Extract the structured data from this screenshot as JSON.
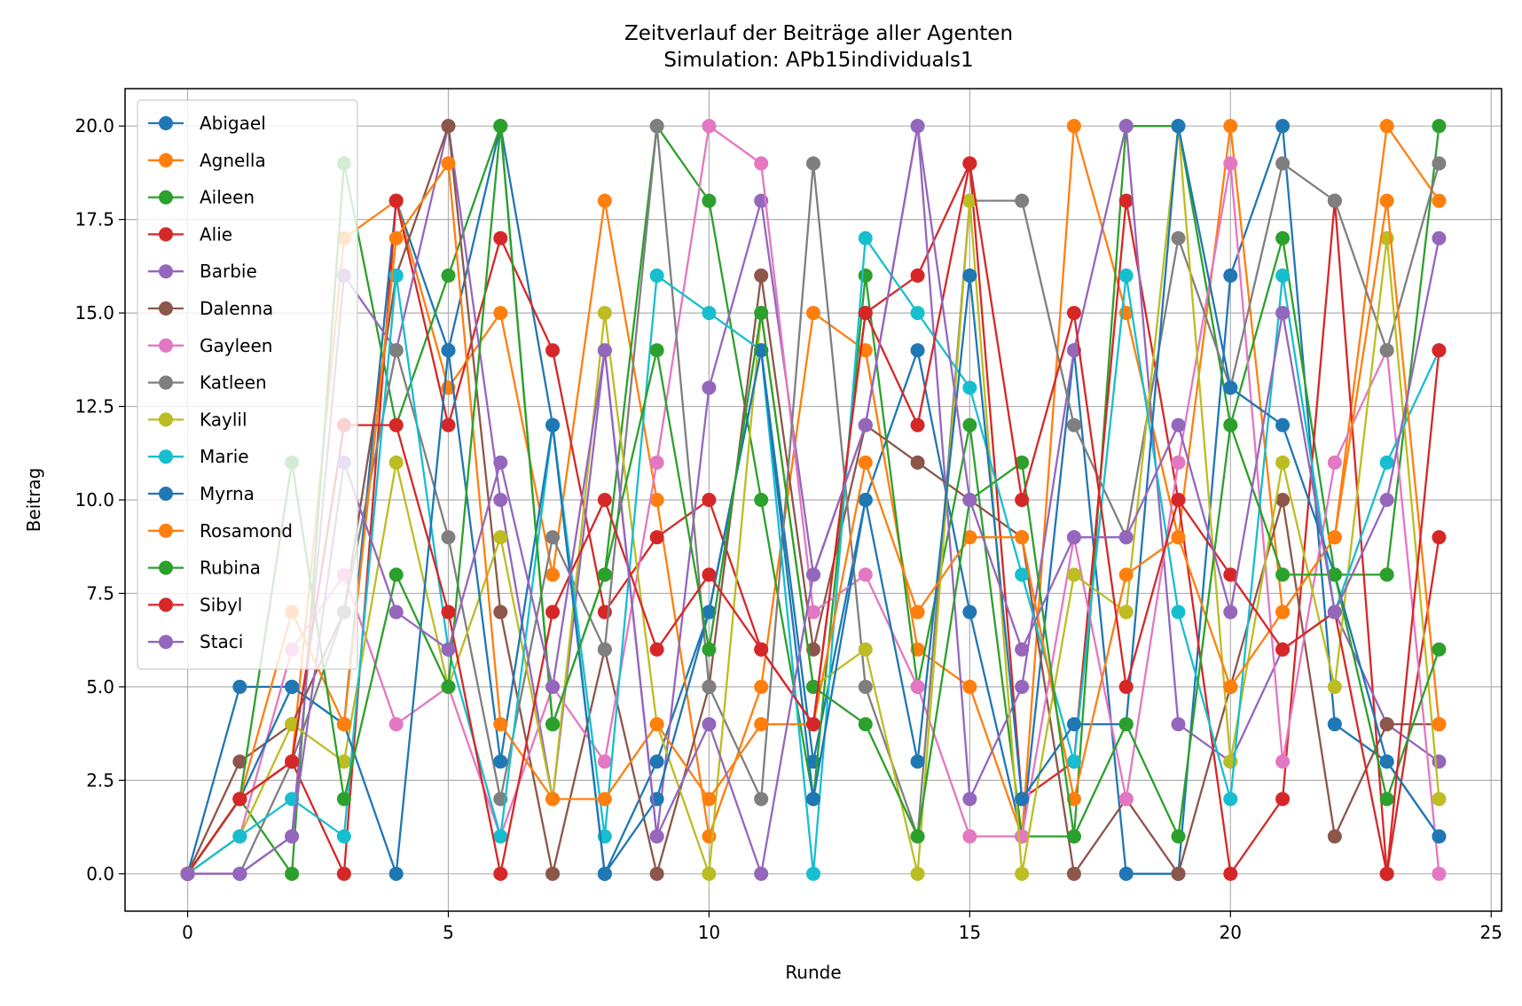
{
  "chart_data": {
    "type": "line",
    "title": "Zeitverlauf der Beiträge aller Agenten",
    "subtitle": "Simulation: APb15individuals1",
    "xlabel": "Runde",
    "ylabel": "Beitrag",
    "xlim": [
      -1.2,
      25.2
    ],
    "ylim": [
      -1,
      21
    ],
    "xticks": [
      0,
      5,
      10,
      15,
      20,
      25
    ],
    "yticks": [
      0.0,
      2.5,
      5.0,
      7.5,
      10.0,
      12.5,
      15.0,
      17.5,
      20.0
    ],
    "ytick_labels": [
      "0.0",
      "2.5",
      "5.0",
      "7.5",
      "10.0",
      "12.5",
      "15.0",
      "17.5",
      "20.0"
    ],
    "grid": true,
    "legend_position": "top-left",
    "marker": "circle",
    "x": [
      0,
      1,
      2,
      3,
      4,
      5,
      6,
      7,
      8,
      9,
      10,
      11,
      12,
      13,
      14,
      15,
      16,
      17,
      18,
      19,
      20,
      21,
      22,
      23,
      24
    ],
    "series": [
      {
        "name": "Abigael",
        "color": "#1f77b4",
        "values": [
          0,
          5,
          5,
          4,
          18,
          14,
          20,
          12,
          0,
          3,
          7,
          14,
          3,
          10,
          14,
          7,
          1,
          14,
          0,
          0,
          16,
          20,
          4,
          3,
          1
        ]
      },
      {
        "name": "Agnella",
        "color": "#ff7f0e",
        "values": [
          0,
          2,
          3,
          17,
          18,
          13,
          15,
          8,
          18,
          10,
          1,
          5,
          15,
          14,
          6,
          5,
          1,
          20,
          15,
          9,
          20,
          7,
          9,
          20,
          18
        ]
      },
      {
        "name": "Aileen",
        "color": "#2ca02c",
        "values": [
          0,
          2,
          0,
          19,
          12,
          16,
          20,
          4,
          8,
          20,
          18,
          10,
          2,
          16,
          5,
          12,
          1,
          1,
          20,
          20,
          12,
          17,
          8,
          8,
          20
        ]
      },
      {
        "name": "Alie",
        "color": "#d62728",
        "values": [
          0,
          2,
          3,
          0,
          18,
          12,
          17,
          14,
          7,
          9,
          10,
          6,
          4,
          15,
          16,
          19,
          2,
          3,
          18,
          10,
          0,
          2,
          18,
          0,
          9
        ]
      },
      {
        "name": "Barbie",
        "color": "#9467bd",
        "values": [
          0,
          0,
          1,
          16,
          14,
          20,
          10,
          2,
          14,
          1,
          13,
          18,
          8,
          12,
          20,
          2,
          5,
          14,
          20,
          4,
          3,
          6,
          7,
          4,
          3
        ]
      },
      {
        "name": "Dalenna",
        "color": "#8c564b",
        "values": [
          0,
          3,
          4,
          7,
          16,
          20,
          7,
          0,
          6,
          0,
          5,
          16,
          6,
          12,
          11,
          10,
          9,
          0,
          2,
          0,
          5,
          10,
          1,
          4,
          4
        ]
      },
      {
        "name": "Gayleen",
        "color": "#e377c2",
        "values": [
          0,
          1,
          6,
          8,
          4,
          5,
          1,
          5,
          3,
          11,
          20,
          19,
          7,
          8,
          5,
          1,
          1,
          9,
          2,
          11,
          19,
          3,
          11,
          14,
          0
        ]
      },
      {
        "name": "Katleen",
        "color": "#7f7f7f",
        "values": [
          0,
          0,
          3,
          7,
          14,
          9,
          2,
          9,
          6,
          20,
          5,
          2,
          19,
          5,
          1,
          18,
          18,
          12,
          9,
          17,
          13,
          19,
          18,
          14,
          19
        ]
      },
      {
        "name": "Kaylil",
        "color": "#bcbd22",
        "values": [
          0,
          1,
          4,
          3,
          11,
          5,
          9,
          2,
          15,
          4,
          0,
          15,
          5,
          6,
          0,
          18,
          0,
          8,
          7,
          20,
          3,
          11,
          5,
          17,
          2
        ]
      },
      {
        "name": "Marie",
        "color": "#17becf",
        "values": [
          0,
          1,
          2,
          1,
          16,
          6,
          1,
          12,
          1,
          16,
          15,
          14,
          0,
          17,
          15,
          13,
          8,
          3,
          16,
          7,
          2,
          16,
          7,
          11,
          14
        ]
      },
      {
        "name": "Myrna",
        "color": "#1f77b4",
        "values": [
          0,
          2,
          5,
          4,
          0,
          14,
          3,
          12,
          0,
          2,
          7,
          14,
          2,
          10,
          3,
          16,
          2,
          4,
          4,
          20,
          13,
          12,
          8,
          3,
          1
        ]
      },
      {
        "name": "Rosamond",
        "color": "#ff7f0e",
        "values": [
          0,
          2,
          7,
          4,
          17,
          19,
          4,
          2,
          2,
          4,
          2,
          4,
          4,
          11,
          7,
          9,
          9,
          2,
          8,
          9,
          5,
          7,
          9,
          18,
          4
        ]
      },
      {
        "name": "Rubina",
        "color": "#2ca02c",
        "values": [
          0,
          2,
          11,
          2,
          8,
          5,
          20,
          4,
          8,
          14,
          6,
          15,
          5,
          4,
          1,
          10,
          11,
          1,
          4,
          1,
          12,
          8,
          8,
          2,
          6
        ]
      },
      {
        "name": "Sibyl",
        "color": "#d62728",
        "values": [
          0,
          2,
          3,
          12,
          12,
          7,
          0,
          7,
          10,
          6,
          8,
          6,
          4,
          15,
          12,
          19,
          10,
          15,
          5,
          10,
          8,
          6,
          7,
          0,
          14
        ]
      },
      {
        "name": "Staci",
        "color": "#9467bd",
        "values": [
          0,
          0,
          1,
          11,
          7,
          6,
          11,
          5,
          14,
          1,
          4,
          0,
          8,
          12,
          20,
          10,
          6,
          9,
          9,
          12,
          7,
          15,
          7,
          10,
          17
        ]
      }
    ]
  }
}
